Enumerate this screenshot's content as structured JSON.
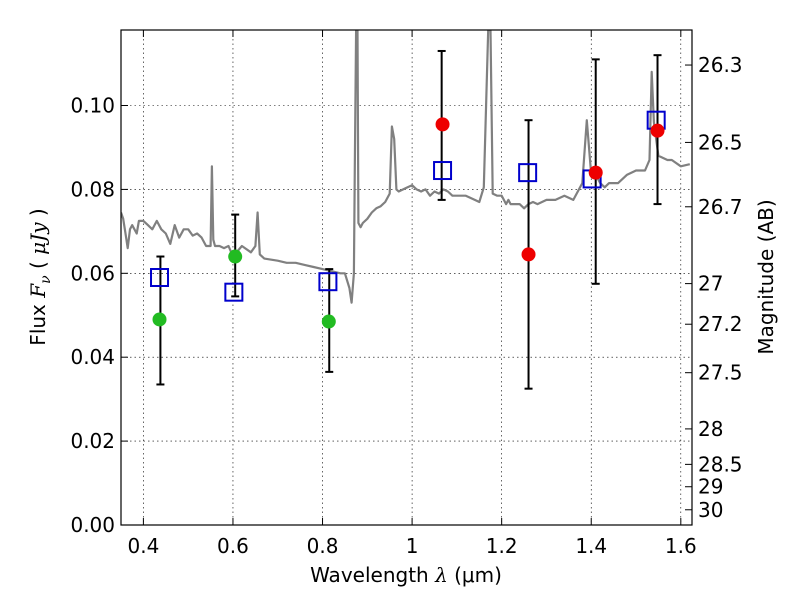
{
  "chart_data": {
    "type": "scatter",
    "title": "",
    "xlabel": {
      "text": "Wavelength",
      "symbol": "λ",
      "unit": "(μm)"
    },
    "ylabel": {
      "text": "Flux",
      "symbol": "F",
      "subscript": "ν",
      "open": "(",
      "unit": "μJy",
      "close": ")"
    },
    "y2label": "Magnitude (AB)",
    "xlim": [
      0.35,
      1.625
    ],
    "ylim": [
      0.0,
      0.118
    ],
    "grid": true,
    "xticks": [
      {
        "value": 0.4,
        "label": "0.4"
      },
      {
        "value": 0.6,
        "label": "0.6"
      },
      {
        "value": 0.8,
        "label": "0.8"
      },
      {
        "value": 1.0,
        "label": "1"
      },
      {
        "value": 1.2,
        "label": "1.2"
      },
      {
        "value": 1.4,
        "label": "1.4"
      },
      {
        "value": 1.6,
        "label": "1.6"
      }
    ],
    "yticks": [
      {
        "value": 0.0,
        "label": "0.00"
      },
      {
        "value": 0.02,
        "label": "0.02"
      },
      {
        "value": 0.04,
        "label": "0.04"
      },
      {
        "value": 0.06,
        "label": "0.06"
      },
      {
        "value": 0.08,
        "label": "0.08"
      },
      {
        "value": 0.1,
        "label": "0.10"
      }
    ],
    "y2ticks": [
      {
        "label": "26.3",
        "magnitude": 26.3
      },
      {
        "label": "26.5",
        "magnitude": 26.5
      },
      {
        "label": "26.7",
        "magnitude": 26.7
      },
      {
        "label": "27",
        "magnitude": 27.0
      },
      {
        "label": "27.2",
        "magnitude": 27.2
      },
      {
        "label": "27.5",
        "magnitude": 27.5
      },
      {
        "label": "28",
        "magnitude": 28.0
      },
      {
        "label": "28.5",
        "magnitude": 28.5
      },
      {
        "label": "29",
        "magnitude": 29.0
      },
      {
        "label": "30",
        "magnitude": 30.0
      }
    ],
    "series": [
      {
        "kind": "line",
        "color": "#808080",
        "x": [
          0.35,
          0.355,
          0.36,
          0.365,
          0.37,
          0.375,
          0.38,
          0.385,
          0.39,
          0.4,
          0.41,
          0.42,
          0.43,
          0.44,
          0.45,
          0.46,
          0.47,
          0.48,
          0.49,
          0.5,
          0.51,
          0.52,
          0.53,
          0.54,
          0.55,
          0.553,
          0.556,
          0.56,
          0.57,
          0.58,
          0.59,
          0.6,
          0.62,
          0.64,
          0.65,
          0.655,
          0.66,
          0.67,
          0.7,
          0.72,
          0.74,
          0.76,
          0.78,
          0.8,
          0.82,
          0.84,
          0.85,
          0.86,
          0.865,
          0.87,
          0.872,
          0.875,
          0.878,
          0.88,
          0.885,
          0.89,
          0.9,
          0.91,
          0.92,
          0.93,
          0.94,
          0.95,
          0.955,
          0.96,
          0.965,
          0.97,
          0.98,
          0.99,
          1.0,
          1.01,
          1.02,
          1.03,
          1.04,
          1.05,
          1.06,
          1.07,
          1.08,
          1.09,
          1.1,
          1.12,
          1.14,
          1.15,
          1.16,
          1.17,
          1.175,
          1.18,
          1.19,
          1.2,
          1.21,
          1.215,
          1.22,
          1.23,
          1.24,
          1.25,
          1.26,
          1.27,
          1.28,
          1.3,
          1.32,
          1.34,
          1.36,
          1.38,
          1.39,
          1.4,
          1.41,
          1.42,
          1.43,
          1.44,
          1.45,
          1.46,
          1.48,
          1.5,
          1.52,
          1.53,
          1.535,
          1.54,
          1.55,
          1.56,
          1.57,
          1.58,
          1.6,
          1.62
        ],
        "y": [
          0.0745,
          0.073,
          0.0695,
          0.066,
          0.0705,
          0.0715,
          0.0705,
          0.0695,
          0.0725,
          0.0725,
          0.0715,
          0.0705,
          0.0725,
          0.0705,
          0.0695,
          0.067,
          0.0715,
          0.0685,
          0.0705,
          0.0705,
          0.069,
          0.0695,
          0.0685,
          0.0665,
          0.0665,
          0.0855,
          0.068,
          0.0665,
          0.0665,
          0.066,
          0.0665,
          0.064,
          0.0665,
          0.065,
          0.0665,
          0.0745,
          0.0645,
          0.0635,
          0.063,
          0.0625,
          0.0625,
          0.062,
          0.0615,
          0.061,
          0.0605,
          0.06,
          0.06,
          0.0565,
          0.053,
          0.06,
          0.085,
          0.118,
          0.118,
          0.072,
          0.071,
          0.072,
          0.073,
          0.0745,
          0.0755,
          0.076,
          0.077,
          0.079,
          0.095,
          0.092,
          0.08,
          0.0795,
          0.08,
          0.0805,
          0.081,
          0.08,
          0.0795,
          0.08,
          0.0785,
          0.0795,
          0.079,
          0.08,
          0.0795,
          0.0785,
          0.0785,
          0.0785,
          0.0775,
          0.077,
          0.0805,
          0.118,
          0.118,
          0.079,
          0.0785,
          0.0785,
          0.0765,
          0.0775,
          0.0765,
          0.0765,
          0.0765,
          0.0755,
          0.0765,
          0.077,
          0.0765,
          0.0775,
          0.0775,
          0.0785,
          0.0775,
          0.0815,
          0.0965,
          0.0835,
          0.0835,
          0.0815,
          0.0805,
          0.0815,
          0.0815,
          0.0815,
          0.0835,
          0.0845,
          0.0845,
          0.087,
          0.108,
          0.096,
          0.088,
          0.0875,
          0.087,
          0.087,
          0.0855,
          0.086
        ]
      },
      {
        "kind": "errorbar",
        "color": "#000000",
        "x": [
          0.438,
          0.605,
          0.815,
          1.066,
          1.26,
          1.41,
          1.548
        ],
        "low": [
          0.0335,
          0.0545,
          0.0365,
          0.0775,
          0.0325,
          0.0575,
          0.0765
        ],
        "high": [
          0.064,
          0.074,
          0.061,
          0.113,
          0.0965,
          0.111,
          0.112
        ]
      },
      {
        "kind": "marker",
        "shape": "square",
        "color": "#0000cc",
        "x": [
          0.436,
          0.602,
          0.812,
          1.068,
          1.258,
          1.402,
          1.545
        ],
        "y": [
          0.059,
          0.0555,
          0.058,
          0.0845,
          0.084,
          0.0825,
          0.0965
        ]
      },
      {
        "kind": "marker",
        "shape": "circle",
        "color": "#22bb22",
        "x": [
          0.436,
          0.605,
          0.814
        ],
        "y": [
          0.049,
          0.064,
          0.0485
        ]
      },
      {
        "kind": "marker",
        "shape": "circle",
        "color": "#ee0000",
        "x": [
          1.068,
          1.26,
          1.41,
          1.548
        ],
        "y": [
          0.0955,
          0.0645,
          0.084,
          0.094
        ]
      }
    ]
  }
}
